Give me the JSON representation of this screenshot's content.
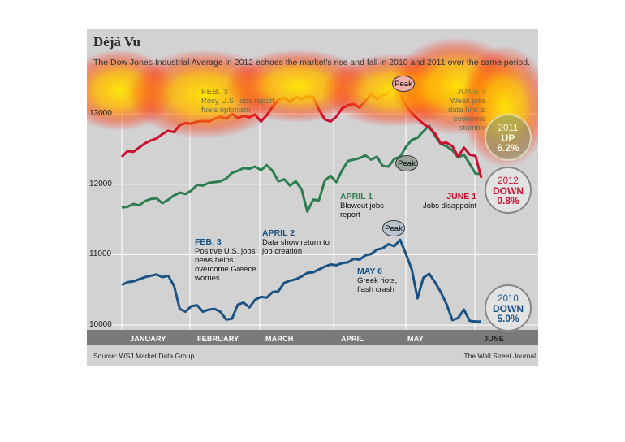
{
  "colors": {
    "red": "#c8102e",
    "green": "#2e7d4f",
    "blue": "#1a5383",
    "panel": "#d2d2d2",
    "axis_bar": "#7a7a7a",
    "heat": "#ffd700"
  },
  "title": "Déjà Vu",
  "subtitle": "The Dow Jones Industrial Average in 2012 echoes the market's rise and fall in 2010 and 2011 over the same period.",
  "source": "Source: WSJ Market Data Group",
  "credit": "The Wall Street Journal",
  "annotations": {
    "feb3_2012": {
      "head": "FEB. 3",
      "body": "Rosy U.S. jobs report fuels optimism"
    },
    "june3_2011": {
      "head": "JUNE 3",
      "body": "Weak jobs data hint at economic stumble"
    },
    "april1": {
      "head": "APRIL 1",
      "body": "Blowout jobs report"
    },
    "june1": {
      "head": "JUNE 1",
      "body": "Jobs disappoint"
    },
    "feb3_2010": {
      "head": "FEB. 3",
      "body": "Positive U.S. jobs news helps overcome Greece worries"
    },
    "april2": {
      "head": "APRIL 2",
      "body": "Data show return to job creation"
    },
    "may6": {
      "head": "MAY 6",
      "body": "Greek riots, flash crash"
    }
  },
  "peak_label": "Peak",
  "badges": {
    "y2011": {
      "year": "2011",
      "dir": "UP",
      "pct": "6.2%"
    },
    "y2012": {
      "year": "2012",
      "dir": "DOWN",
      "pct": "0.8%"
    },
    "y2010": {
      "year": "2010",
      "dir": "DOWN",
      "pct": "5.0%"
    }
  },
  "chart_data": {
    "type": "line",
    "title": "Déjà Vu",
    "subtitle": "The Dow Jones Industrial Average in 2012 echoes the market's rise and fall in 2010 and 2011 over the same period.",
    "xlabel": "",
    "ylabel": "",
    "ylim": [
      9850,
      13500
    ],
    "yticks": [
      "10000",
      "11000",
      "12000",
      "13000"
    ],
    "months": [
      "JANUARY",
      "FEBRUARY",
      "MARCH",
      "APRIL",
      "MAY",
      "JUNE"
    ],
    "grid": true,
    "series": [
      {
        "name": "2011",
        "color": "green",
        "values": [
          11670,
          11680,
          11720,
          11700,
          11760,
          11790,
          11800,
          11730,
          11780,
          11840,
          11880,
          11860,
          11910,
          11990,
          11980,
          12020,
          12030,
          12040,
          12080,
          12160,
          12190,
          12230,
          12220,
          12250,
          12200,
          12270,
          12190,
          12040,
          12070,
          11980,
          12040,
          11930,
          11610,
          11780,
          11770,
          12050,
          12120,
          12030,
          12200,
          12330,
          12350,
          12370,
          12410,
          12350,
          12390,
          12260,
          12250,
          12360,
          12390,
          12530,
          12630,
          12660,
          12750,
          12830,
          12690,
          12570,
          12540,
          12480,
          12380,
          12420,
          12290,
          12150,
          12150
        ]
      },
      {
        "name": "2012",
        "color": "red",
        "values": [
          12390,
          12470,
          12460,
          12520,
          12580,
          12620,
          12650,
          12710,
          12760,
          12740,
          12840,
          12870,
          12860,
          12890,
          12900,
          12890,
          12930,
          12960,
          12930,
          13000,
          12940,
          12970,
          12950,
          12990,
          12890,
          12980,
          13100,
          13200,
          13230,
          13170,
          13240,
          13210,
          13250,
          13240,
          13060,
          12920,
          12890,
          12960,
          13080,
          13120,
          13140,
          13090,
          13180,
          13280,
          13210,
          13260,
          13300,
          13370,
          13280,
          13120,
          13010,
          12930,
          12860,
          12800,
          12720,
          12580,
          12590,
          12540,
          12390,
          12520,
          12420,
          12400,
          12090
        ]
      },
      {
        "name": "2010",
        "color": "blue",
        "values": [
          10570,
          10610,
          10620,
          10650,
          10680,
          10700,
          10720,
          10680,
          10700,
          10560,
          10230,
          10190,
          10270,
          10280,
          10190,
          10220,
          10230,
          10190,
          10080,
          10090,
          10290,
          10320,
          10250,
          10360,
          10400,
          10390,
          10470,
          10480,
          10600,
          10630,
          10650,
          10690,
          10740,
          10750,
          10790,
          10830,
          10860,
          10850,
          10880,
          10890,
          10940,
          10930,
          10990,
          11010,
          11070,
          11090,
          11150,
          11120,
          11210,
          11010,
          10790,
          10380,
          10670,
          10730,
          10610,
          10470,
          10300,
          10070,
          10100,
          10220,
          10060,
          10050,
          10050
        ]
      }
    ]
  }
}
